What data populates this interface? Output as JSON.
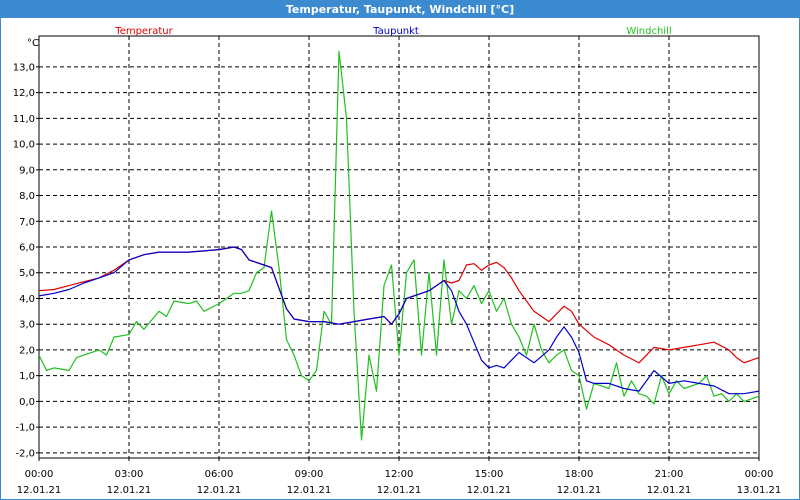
{
  "window": {
    "title": "Temperatur, Taupunkt, Windchill [°C]"
  },
  "colors": {
    "titlebar": "#3c8bd0",
    "temperatur": "#e00000",
    "taupunkt": "#0000cc",
    "windchill": "#20c020",
    "grid": "#000000"
  },
  "chart_data": {
    "type": "line",
    "title": "Temperatur, Taupunkt, Windchill [°C]",
    "ylabel": "°C",
    "xlabel": "",
    "ylim": [
      -2.2,
      14.2
    ],
    "xlim": [
      0,
      24
    ],
    "grid": true,
    "legend_placement": "top",
    "yticks": [
      -2.0,
      -1.0,
      0.0,
      1.0,
      2.0,
      3.0,
      4.0,
      5.0,
      6.0,
      7.0,
      8.0,
      9.0,
      10.0,
      11.0,
      12.0,
      13.0
    ],
    "ytick_labels": [
      "-2,0",
      "-1,0",
      "0,0",
      "1,0",
      "2,0",
      "3,0",
      "4,0",
      "5,0",
      "6,0",
      "7,0",
      "8,0",
      "9,0",
      "10,0",
      "11,0",
      "12,0",
      "13,0"
    ],
    "xticks": [
      0,
      3,
      6,
      9,
      12,
      15,
      18,
      21,
      24
    ],
    "xtick_time_labels": [
      "00:00",
      "03:00",
      "06:00",
      "09:00",
      "12:00",
      "15:00",
      "18:00",
      "21:00",
      "00:00"
    ],
    "xtick_date_labels": [
      "12.01.21",
      "12.01.21",
      "12.01.21",
      "12.01.21",
      "12.01.21",
      "12.01.21",
      "12.01.21",
      "12.01.21",
      "13.01.21"
    ],
    "series": [
      {
        "name": "Temperatur",
        "color": "#e00000",
        "points": [
          [
            0,
            4.3
          ],
          [
            0.5,
            4.35
          ],
          [
            1,
            4.5
          ],
          [
            1.5,
            4.65
          ],
          [
            2,
            4.8
          ],
          [
            2.5,
            5.1
          ],
          [
            3,
            5.5
          ],
          [
            3.5,
            5.7
          ],
          [
            4,
            5.8
          ],
          [
            5,
            5.8
          ],
          [
            5.5,
            5.85
          ],
          [
            6,
            5.9
          ],
          [
            6.5,
            6.0
          ],
          [
            6.75,
            5.9
          ],
          [
            7,
            5.5
          ],
          [
            7.5,
            5.3
          ],
          [
            7.75,
            5.2
          ],
          [
            8,
            4.4
          ],
          [
            8.25,
            3.6
          ],
          [
            8.5,
            3.2
          ],
          [
            9,
            3.1
          ],
          [
            9.5,
            3.1
          ],
          [
            10,
            3.0
          ],
          [
            10.5,
            3.1
          ],
          [
            11,
            3.2
          ],
          [
            11.5,
            3.3
          ],
          [
            11.75,
            3.0
          ],
          [
            12,
            3.4
          ],
          [
            12.25,
            4.0
          ],
          [
            12.75,
            4.2
          ],
          [
            13,
            4.3
          ],
          [
            13.25,
            4.5
          ],
          [
            13.5,
            4.7
          ],
          [
            13.75,
            4.6
          ],
          [
            14,
            4.7
          ],
          [
            14.25,
            5.3
          ],
          [
            14.5,
            5.35
          ],
          [
            14.75,
            5.1
          ],
          [
            15,
            5.3
          ],
          [
            15.25,
            5.4
          ],
          [
            15.5,
            5.2
          ],
          [
            15.75,
            4.8
          ],
          [
            16,
            4.3
          ],
          [
            16.5,
            3.5
          ],
          [
            17,
            3.1
          ],
          [
            17.25,
            3.4
          ],
          [
            17.5,
            3.7
          ],
          [
            17.75,
            3.5
          ],
          [
            18,
            3.0
          ],
          [
            18.5,
            2.5
          ],
          [
            19,
            2.2
          ],
          [
            19.5,
            1.8
          ],
          [
            20,
            1.5
          ],
          [
            20.5,
            2.1
          ],
          [
            21,
            2.0
          ],
          [
            21.5,
            2.1
          ],
          [
            22,
            2.2
          ],
          [
            22.5,
            2.3
          ],
          [
            23,
            2.0
          ],
          [
            23.25,
            1.7
          ],
          [
            23.5,
            1.5
          ],
          [
            23.75,
            1.6
          ],
          [
            24,
            1.7
          ],
          [
            24.5,
            1.7
          ],
          [
            24.75,
            1.8
          ],
          [
            25,
            2.0
          ]
        ]
      },
      {
        "name": "Taupunkt",
        "color": "#0000cc",
        "points": [
          [
            0,
            4.1
          ],
          [
            0.5,
            4.2
          ],
          [
            1,
            4.35
          ],
          [
            1.5,
            4.6
          ],
          [
            2,
            4.8
          ],
          [
            2.5,
            5.0
          ],
          [
            3,
            5.5
          ],
          [
            3.5,
            5.7
          ],
          [
            4,
            5.8
          ],
          [
            5,
            5.8
          ],
          [
            5.5,
            5.85
          ],
          [
            6,
            5.9
          ],
          [
            6.5,
            6.0
          ],
          [
            6.75,
            5.9
          ],
          [
            7,
            5.5
          ],
          [
            7.5,
            5.3
          ],
          [
            7.75,
            5.2
          ],
          [
            8,
            4.4
          ],
          [
            8.25,
            3.6
          ],
          [
            8.5,
            3.2
          ],
          [
            9,
            3.1
          ],
          [
            9.5,
            3.1
          ],
          [
            10,
            3.0
          ],
          [
            10.5,
            3.1
          ],
          [
            11,
            3.2
          ],
          [
            11.5,
            3.3
          ],
          [
            11.75,
            3.0
          ],
          [
            12,
            3.4
          ],
          [
            12.25,
            4.0
          ],
          [
            12.75,
            4.2
          ],
          [
            13,
            4.3
          ],
          [
            13.25,
            4.5
          ],
          [
            13.5,
            4.7
          ],
          [
            13.75,
            4.3
          ],
          [
            14,
            3.5
          ],
          [
            14.25,
            3.0
          ],
          [
            14.5,
            2.3
          ],
          [
            14.75,
            1.6
          ],
          [
            15,
            1.3
          ],
          [
            15.25,
            1.4
          ],
          [
            15.5,
            1.3
          ],
          [
            15.75,
            1.6
          ],
          [
            16,
            1.9
          ],
          [
            16.5,
            1.5
          ],
          [
            17,
            2.0
          ],
          [
            17.25,
            2.5
          ],
          [
            17.5,
            2.9
          ],
          [
            17.75,
            2.5
          ],
          [
            18,
            1.9
          ],
          [
            18.25,
            0.8
          ],
          [
            18.5,
            0.7
          ],
          [
            19,
            0.7
          ],
          [
            19.5,
            0.5
          ],
          [
            20,
            0.4
          ],
          [
            20.5,
            1.2
          ],
          [
            21,
            0.7
          ],
          [
            21.5,
            0.8
          ],
          [
            22,
            0.7
          ],
          [
            22.5,
            0.6
          ],
          [
            23,
            0.3
          ],
          [
            23.5,
            0.3
          ],
          [
            24,
            0.4
          ],
          [
            24.5,
            0.7
          ],
          [
            24.75,
            0.5
          ],
          [
            25,
            0.8
          ]
        ]
      },
      {
        "name": "Windchill",
        "color": "#20c020",
        "points": [
          [
            0,
            1.8
          ],
          [
            0.25,
            1.2
          ],
          [
            0.5,
            1.3
          ],
          [
            1,
            1.2
          ],
          [
            1.25,
            1.7
          ],
          [
            1.5,
            1.8
          ],
          [
            2,
            2.0
          ],
          [
            2.25,
            1.8
          ],
          [
            2.5,
            2.5
          ],
          [
            3,
            2.6
          ],
          [
            3.25,
            3.1
          ],
          [
            3.5,
            2.8
          ],
          [
            4,
            3.5
          ],
          [
            4.25,
            3.3
          ],
          [
            4.5,
            3.9
          ],
          [
            5,
            3.8
          ],
          [
            5.25,
            3.9
          ],
          [
            5.5,
            3.5
          ],
          [
            6,
            3.8
          ],
          [
            6.25,
            4.0
          ],
          [
            6.5,
            4.2
          ],
          [
            6.75,
            4.2
          ],
          [
            7,
            4.3
          ],
          [
            7.25,
            5.0
          ],
          [
            7.5,
            5.2
          ],
          [
            7.75,
            7.4
          ],
          [
            8,
            5.2
          ],
          [
            8.25,
            2.4
          ],
          [
            8.5,
            1.8
          ],
          [
            8.75,
            1.0
          ],
          [
            9,
            0.8
          ],
          [
            9.25,
            1.2
          ],
          [
            9.5,
            3.5
          ],
          [
            9.75,
            3.0
          ],
          [
            10,
            13.6
          ],
          [
            10.25,
            11.0
          ],
          [
            10.5,
            3.5
          ],
          [
            10.75,
            -1.5
          ],
          [
            11,
            1.8
          ],
          [
            11.25,
            0.4
          ],
          [
            11.5,
            4.5
          ],
          [
            11.75,
            5.3
          ],
          [
            12,
            1.8
          ],
          [
            12.25,
            5.0
          ],
          [
            12.5,
            5.5
          ],
          [
            12.75,
            1.8
          ],
          [
            13,
            5.0
          ],
          [
            13.25,
            1.8
          ],
          [
            13.5,
            5.5
          ],
          [
            13.75,
            3.0
          ],
          [
            14,
            4.3
          ],
          [
            14.25,
            4.0
          ],
          [
            14.5,
            4.5
          ],
          [
            14.75,
            3.8
          ],
          [
            15,
            4.3
          ],
          [
            15.25,
            3.5
          ],
          [
            15.5,
            4.0
          ],
          [
            15.75,
            3.0
          ],
          [
            16,
            2.5
          ],
          [
            16.25,
            1.8
          ],
          [
            16.5,
            3.0
          ],
          [
            16.75,
            2.0
          ],
          [
            17,
            1.5
          ],
          [
            17.25,
            1.8
          ],
          [
            17.5,
            2.0
          ],
          [
            17.75,
            1.2
          ],
          [
            18,
            1.0
          ],
          [
            18.25,
            -0.3
          ],
          [
            18.5,
            0.7
          ],
          [
            19,
            0.5
          ],
          [
            19.25,
            1.5
          ],
          [
            19.5,
            0.2
          ],
          [
            19.75,
            0.8
          ],
          [
            20,
            0.3
          ],
          [
            20.25,
            0.2
          ],
          [
            20.5,
            -0.1
          ],
          [
            20.75,
            1.0
          ],
          [
            21,
            0.3
          ],
          [
            21.25,
            0.8
          ],
          [
            21.5,
            0.5
          ],
          [
            22,
            0.7
          ],
          [
            22.25,
            1.0
          ],
          [
            22.5,
            0.2
          ],
          [
            22.75,
            0.3
          ],
          [
            23,
            0.0
          ],
          [
            23.25,
            0.3
          ],
          [
            23.5,
            0.0
          ],
          [
            24,
            0.2
          ],
          [
            24.25,
            0.8
          ],
          [
            24.5,
            0.4
          ],
          [
            24.75,
            -0.2
          ],
          [
            25,
            -0.4
          ]
        ]
      }
    ]
  }
}
